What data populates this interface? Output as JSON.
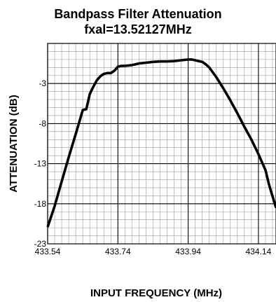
{
  "chart_data": {
    "type": "line",
    "title": "Bandpass Filter Attenuation",
    "subtitle": "fxal=13.52127MHz",
    "xlabel": "INPUT FREQUENCY (MHz)",
    "ylabel": "ATTENUATION (dB)",
    "xlim": [
      433.54,
      434.19
    ],
    "ylim": [
      -23,
      2
    ],
    "x_ticks": [
      433.54,
      433.74,
      433.94,
      434.14
    ],
    "x_tick_labels": [
      "433.54",
      "433.74",
      "433.94",
      "434.14"
    ],
    "y_ticks": [
      -3,
      -8,
      -13,
      -18,
      -23
    ],
    "y_tick_labels": [
      "-3",
      "-8",
      "-13",
      "-18",
      "-23"
    ],
    "grid": true,
    "series": [
      {
        "color": "#000000",
        "x": [
          433.54,
          433.56,
          433.58,
          433.6,
          433.62,
          433.64,
          433.65,
          433.66,
          433.67,
          433.68,
          433.69,
          433.7,
          433.71,
          433.72,
          433.73,
          433.74,
          433.75,
          433.76,
          433.78,
          433.8,
          433.82,
          433.84,
          433.86,
          433.88,
          433.9,
          433.92,
          433.94,
          433.95,
          433.96,
          433.97,
          433.98,
          433.99,
          434.0,
          434.02,
          434.04,
          434.06,
          434.08,
          434.1,
          434.12,
          434.14,
          434.16,
          434.17,
          434.19
        ],
        "y": [
          -20.9,
          -18.3,
          -15.2,
          -12.2,
          -9.3,
          -6.3,
          -6.2,
          -4.3,
          -3.4,
          -2.6,
          -2.1,
          -1.8,
          -1.7,
          -1.7,
          -1.4,
          -0.9,
          -0.8,
          -0.8,
          -0.7,
          -0.5,
          -0.4,
          -0.3,
          -0.25,
          -0.25,
          -0.2,
          -0.1,
          0.0,
          0.0,
          -0.1,
          -0.2,
          -0.3,
          -0.6,
          -1.0,
          -2.2,
          -3.6,
          -5.1,
          -6.7,
          -8.4,
          -10.0,
          -11.8,
          -13.8,
          -15.6,
          -18.5
        ]
      }
    ]
  }
}
